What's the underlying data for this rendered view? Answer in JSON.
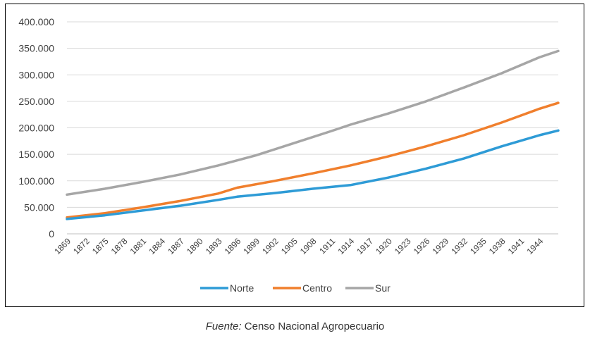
{
  "chart_data": {
    "type": "line",
    "x": [
      "1869",
      "1872",
      "1875",
      "1878",
      "1881",
      "1884",
      "1887",
      "1890",
      "1893",
      "1896",
      "1899",
      "1902",
      "1905",
      "1908",
      "1911",
      "1914",
      "1917",
      "1920",
      "1923",
      "1926",
      "1929",
      "1932",
      "1935",
      "1938",
      "1941",
      "1944"
    ],
    "x_start_year": 1869,
    "x_end_year": 1947,
    "ylim": [
      0,
      400000
    ],
    "yticks": [
      0,
      50000,
      100000,
      150000,
      200000,
      250000,
      300000,
      350000,
      400000
    ],
    "ytick_labels": [
      "0",
      "50.000",
      "100.000",
      "150.000",
      "200.000",
      "250.000",
      "300.000",
      "350.000",
      "400.000"
    ],
    "grid": "horizontal",
    "legend_position": "bottom",
    "series": [
      {
        "name": "Norte",
        "color": "#2E9BD6",
        "points": [
          [
            1869,
            28000
          ],
          [
            1875,
            35000
          ],
          [
            1881,
            44000
          ],
          [
            1887,
            53000
          ],
          [
            1893,
            64000
          ],
          [
            1896,
            70000
          ],
          [
            1902,
            77000
          ],
          [
            1908,
            85000
          ],
          [
            1914,
            92000
          ],
          [
            1920,
            106000
          ],
          [
            1926,
            123000
          ],
          [
            1932,
            142000
          ],
          [
            1938,
            165000
          ],
          [
            1944,
            186000
          ],
          [
            1947,
            195000
          ]
        ]
      },
      {
        "name": "Centro",
        "color": "#F07F2D",
        "points": [
          [
            1869,
            31000
          ],
          [
            1875,
            39000
          ],
          [
            1881,
            50000
          ],
          [
            1887,
            62000
          ],
          [
            1893,
            76000
          ],
          [
            1896,
            87000
          ],
          [
            1902,
            100000
          ],
          [
            1908,
            114000
          ],
          [
            1914,
            129000
          ],
          [
            1920,
            146000
          ],
          [
            1926,
            165000
          ],
          [
            1932,
            186000
          ],
          [
            1938,
            210000
          ],
          [
            1944,
            236000
          ],
          [
            1947,
            247000
          ]
        ]
      },
      {
        "name": "Sur",
        "color": "#A6A6A6",
        "points": [
          [
            1869,
            74000
          ],
          [
            1875,
            85000
          ],
          [
            1881,
            98000
          ],
          [
            1887,
            112000
          ],
          [
            1893,
            129000
          ],
          [
            1899,
            148000
          ],
          [
            1905,
            171000
          ],
          [
            1911,
            194000
          ],
          [
            1914,
            206000
          ],
          [
            1920,
            227000
          ],
          [
            1926,
            250000
          ],
          [
            1932,
            276000
          ],
          [
            1938,
            303000
          ],
          [
            1944,
            333000
          ],
          [
            1947,
            345000
          ]
        ]
      }
    ]
  },
  "caption": {
    "source_label": "Fuente:",
    "source_text": " Censo Nacional Agropecuario"
  }
}
